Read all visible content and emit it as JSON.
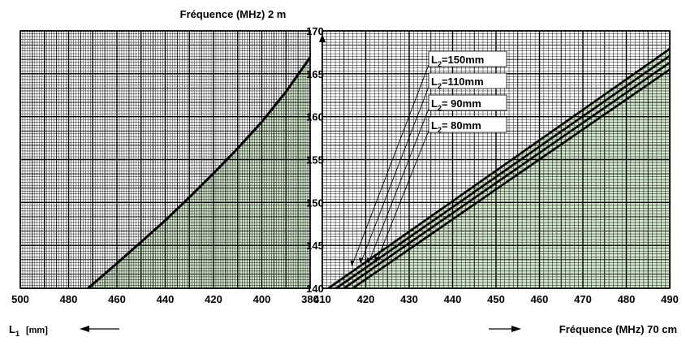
{
  "chart_data": [
    {
      "type": "line",
      "panel": "left",
      "title": "Fréquence (MHz) 2 m",
      "xlabel": "L1 [mm]",
      "xlabel_main": "L",
      "xlabel_sub": "1",
      "xlabel_unit": "[mm]",
      "ylabel": "Fréquence (MHz) 2 m",
      "xlim": [
        500,
        380
      ],
      "ylim": [
        140,
        170
      ],
      "x_ticks": [
        500,
        480,
        460,
        440,
        420,
        400,
        380
      ],
      "y_ticks": [
        140,
        145,
        150,
        155,
        160,
        165,
        170
      ],
      "series": [
        {
          "x": [
            472,
            460,
            450,
            440,
            430,
            420,
            410,
            400,
            390,
            380
          ],
          "y": [
            140,
            142.9,
            145.4,
            147.9,
            150.6,
            153.4,
            156.3,
            159.4,
            162.9,
            166.9
          ]
        }
      ],
      "grid": true,
      "fill_color": "#d2e7cc"
    },
    {
      "type": "line",
      "panel": "right",
      "xlabel": "Fréquence (MHz) 70 cm",
      "xlim": [
        410,
        490
      ],
      "ylim": [
        140,
        170
      ],
      "x_ticks": [
        410,
        420,
        430,
        440,
        450,
        460,
        470,
        480,
        490
      ],
      "y_ticks": [
        140,
        145,
        150,
        155,
        160,
        165,
        170
      ],
      "series": [
        {
          "name_main": "L",
          "name_sub": "2",
          "name_rest": "=150mm",
          "x": [
            411.4,
            490
          ],
          "y": [
            140,
            167.9
          ]
        },
        {
          "name_main": "L",
          "name_sub": "2",
          "name_rest": "=110mm",
          "x": [
            413.2,
            490
          ],
          "y": [
            140,
            167.1
          ]
        },
        {
          "name_main": "L",
          "name_sub": "2",
          "name_rest": "= 90mm",
          "x": [
            415.0,
            490
          ],
          "y": [
            140,
            166.3
          ]
        },
        {
          "name_main": "L",
          "name_sub": "2",
          "name_rest": "= 80mm",
          "x": [
            417.0,
            490
          ],
          "y": [
            140,
            165.5
          ]
        }
      ],
      "grid": true,
      "fill_color": "#d2e7cc"
    }
  ],
  "legend_box": "top-center-right"
}
